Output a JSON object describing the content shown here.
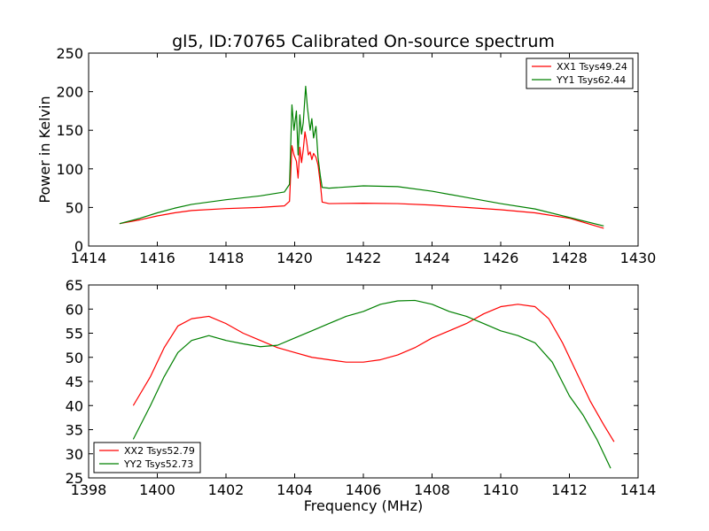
{
  "chart_data": [
    {
      "type": "line",
      "title": "gl5, ID:70765 Calibrated On-source spectrum",
      "xlabel": "",
      "ylabel": "Power in Kelvin",
      "xlim": [
        1414,
        1430
      ],
      "ylim": [
        0,
        250
      ],
      "xticks": [
        "1414",
        "1416",
        "1418",
        "1420",
        "1422",
        "1424",
        "1426",
        "1428",
        "1430"
      ],
      "yticks": [
        "0",
        "50",
        "100",
        "150",
        "200",
        "250"
      ],
      "legend_position": "top-right",
      "grid": false,
      "series": [
        {
          "name": "XX1 Tsys49.24",
          "color": "#ff0000",
          "points": [
            [
              1414.9,
              29
            ],
            [
              1415.5,
              34
            ],
            [
              1416,
              39
            ],
            [
              1416.5,
              43
            ],
            [
              1417,
              46
            ],
            [
              1418,
              48.5
            ],
            [
              1419,
              50
            ],
            [
              1419.7,
              52
            ],
            [
              1419.85,
              58
            ],
            [
              1419.92,
              130
            ],
            [
              1419.98,
              118
            ],
            [
              1420.05,
              110
            ],
            [
              1420.1,
              88
            ],
            [
              1420.15,
              128
            ],
            [
              1420.2,
              108
            ],
            [
              1420.25,
              125
            ],
            [
              1420.3,
              148
            ],
            [
              1420.35,
              135
            ],
            [
              1420.4,
              118
            ],
            [
              1420.45,
              122
            ],
            [
              1420.5,
              112
            ],
            [
              1420.55,
              120
            ],
            [
              1420.62,
              115
            ],
            [
              1420.68,
              105
            ],
            [
              1420.75,
              80
            ],
            [
              1420.8,
              57
            ],
            [
              1421,
              55
            ],
            [
              1422,
              55.5
            ],
            [
              1423,
              55
            ],
            [
              1424,
              53
            ],
            [
              1425,
              50
            ],
            [
              1426,
              47
            ],
            [
              1427,
              43
            ],
            [
              1428,
              36
            ],
            [
              1429,
              23
            ]
          ]
        },
        {
          "name": "YY1 Tsys62.44",
          "color": "#008000",
          "points": [
            [
              1414.9,
              29
            ],
            [
              1415.5,
              36
            ],
            [
              1416,
              43
            ],
            [
              1416.5,
              49
            ],
            [
              1417,
              54
            ],
            [
              1418,
              60
            ],
            [
              1419,
              65
            ],
            [
              1419.7,
              70
            ],
            [
              1419.85,
              80
            ],
            [
              1419.92,
              183
            ],
            [
              1419.98,
              150
            ],
            [
              1420.05,
              175
            ],
            [
              1420.1,
              118
            ],
            [
              1420.15,
              170
            ],
            [
              1420.2,
              145
            ],
            [
              1420.25,
              160
            ],
            [
              1420.32,
              207
            ],
            [
              1420.37,
              180
            ],
            [
              1420.45,
              150
            ],
            [
              1420.5,
              165
            ],
            [
              1420.55,
              140
            ],
            [
              1420.62,
              155
            ],
            [
              1420.68,
              115
            ],
            [
              1420.75,
              90
            ],
            [
              1420.8,
              76
            ],
            [
              1421,
              75
            ],
            [
              1422,
              78
            ],
            [
              1423,
              77
            ],
            [
              1424,
              71
            ],
            [
              1425,
              63
            ],
            [
              1426,
              55
            ],
            [
              1427,
              48
            ],
            [
              1428,
              37
            ],
            [
              1429,
              26
            ]
          ]
        }
      ]
    },
    {
      "type": "line",
      "title": "",
      "xlabel": "Frequency (MHz)",
      "ylabel": "",
      "xlim": [
        1398,
        1414
      ],
      "ylim": [
        25,
        65
      ],
      "xticks": [
        "1398",
        "1400",
        "1402",
        "1404",
        "1406",
        "1408",
        "1410",
        "1412",
        "1414"
      ],
      "yticks": [
        "25",
        "30",
        "35",
        "40",
        "45",
        "50",
        "55",
        "60",
        "65"
      ],
      "legend_position": "bottom-left",
      "grid": false,
      "series": [
        {
          "name": "XX2 Tsys52.79",
          "color": "#ff0000",
          "points": [
            [
              1399.3,
              40
            ],
            [
              1399.8,
              46
            ],
            [
              1400.2,
              52
            ],
            [
              1400.6,
              56.5
            ],
            [
              1401,
              58
            ],
            [
              1401.5,
              58.5
            ],
            [
              1402,
              57
            ],
            [
              1402.5,
              55
            ],
            [
              1403,
              53.5
            ],
            [
              1403.5,
              52
            ],
            [
              1404,
              51
            ],
            [
              1404.5,
              50
            ],
            [
              1405,
              49.5
            ],
            [
              1405.5,
              49
            ],
            [
              1406,
              49
            ],
            [
              1406.5,
              49.5
            ],
            [
              1407,
              50.5
            ],
            [
              1407.5,
              52
            ],
            [
              1408,
              54
            ],
            [
              1408.5,
              55.5
            ],
            [
              1409,
              57
            ],
            [
              1409.5,
              59
            ],
            [
              1410,
              60.5
            ],
            [
              1410.5,
              61
            ],
            [
              1411,
              60.5
            ],
            [
              1411.4,
              58
            ],
            [
              1411.8,
              53
            ],
            [
              1412.2,
              47
            ],
            [
              1412.6,
              41
            ],
            [
              1413,
              36
            ],
            [
              1413.3,
              32.5
            ]
          ]
        },
        {
          "name": "YY2 Tsys52.73",
          "color": "#008000",
          "points": [
            [
              1399.3,
              33
            ],
            [
              1399.8,
              40
            ],
            [
              1400.2,
              46
            ],
            [
              1400.6,
              51
            ],
            [
              1401,
              53.5
            ],
            [
              1401.5,
              54.5
            ],
            [
              1402,
              53.5
            ],
            [
              1402.5,
              52.8
            ],
            [
              1403,
              52.2
            ],
            [
              1403.5,
              52.5
            ],
            [
              1404,
              54
            ],
            [
              1404.5,
              55.5
            ],
            [
              1405,
              57
            ],
            [
              1405.5,
              58.5
            ],
            [
              1406,
              59.5
            ],
            [
              1406.5,
              61
            ],
            [
              1407,
              61.7
            ],
            [
              1407.5,
              61.8
            ],
            [
              1408,
              61
            ],
            [
              1408.5,
              59.5
            ],
            [
              1409,
              58.5
            ],
            [
              1409.5,
              57
            ],
            [
              1410,
              55.5
            ],
            [
              1410.5,
              54.5
            ],
            [
              1411,
              53
            ],
            [
              1411.5,
              49
            ],
            [
              1412,
              42
            ],
            [
              1412.4,
              38
            ],
            [
              1412.8,
              33
            ],
            [
              1413.2,
              27
            ]
          ]
        }
      ]
    }
  ]
}
